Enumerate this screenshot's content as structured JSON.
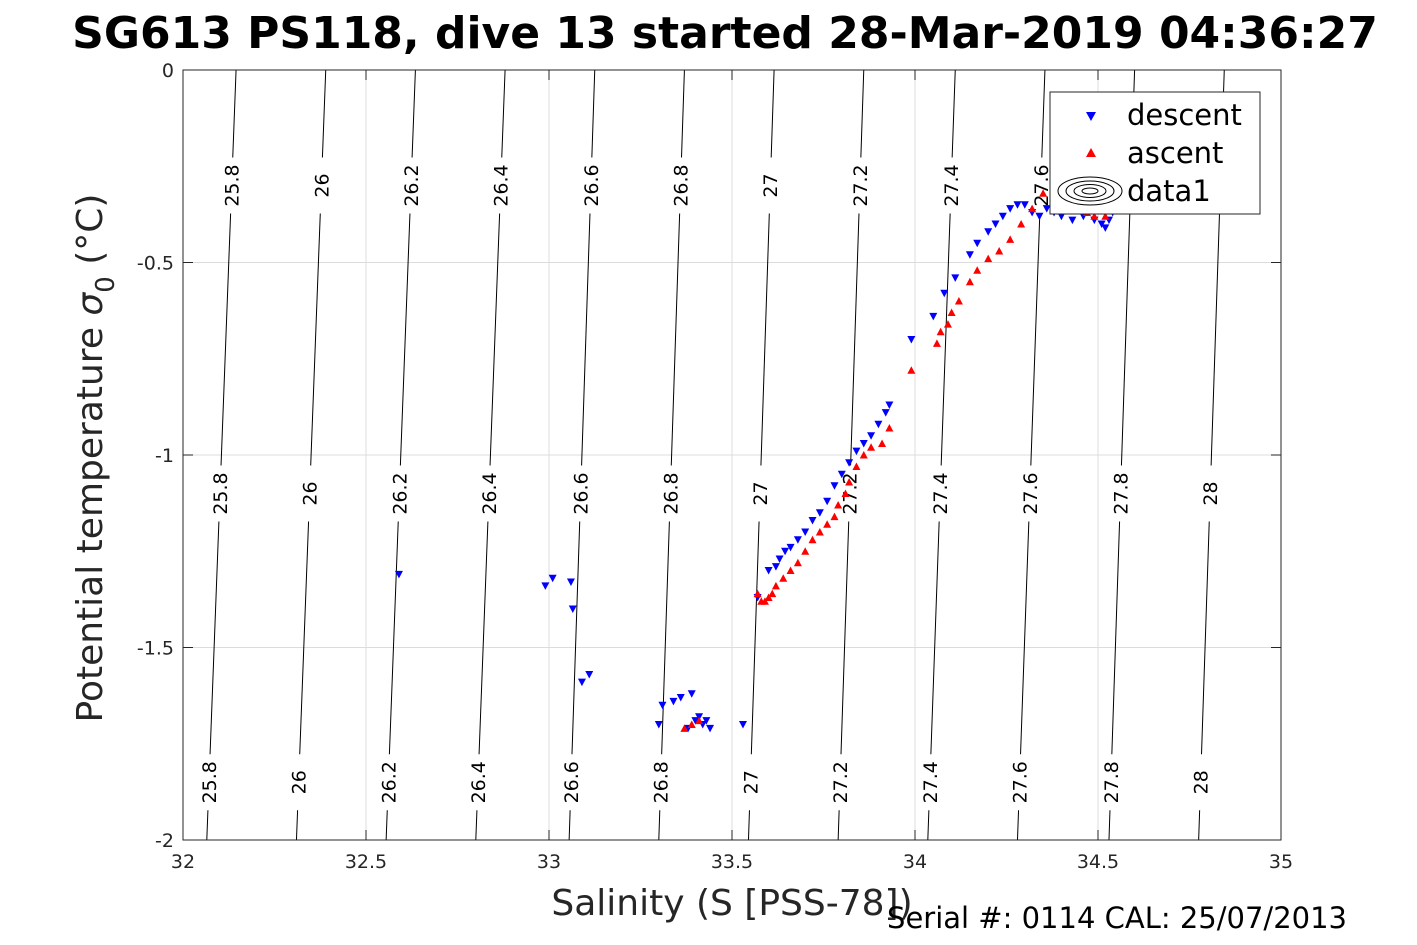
{
  "chart_data": {
    "type": "scatter",
    "title": "SG613 PS118, dive 13 started 28-Mar-2019 04:36:27",
    "xlabel": "Salinity (S [PSS-78])",
    "ylabel_main": "Potential temperature ",
    "ylabel_sigma": "σ",
    "ylabel_sub": "0",
    "ylabel_unit": " (°C)",
    "xlim": [
      32,
      35
    ],
    "ylim": [
      -2,
      0
    ],
    "xticks": [
      32,
      32.5,
      33,
      33.5,
      34,
      34.5,
      35
    ],
    "xtick_labels": [
      "32",
      "32.5",
      "33",
      "33.5",
      "34",
      "34.5",
      "35"
    ],
    "yticks": [
      0,
      -0.5,
      -1,
      -1.5,
      -2
    ],
    "ytick_labels": [
      "0",
      "-0.5",
      "-1",
      "-1.5",
      "-2"
    ],
    "grid": true,
    "legend_position": "top-right",
    "legend": [
      {
        "label": "descent",
        "marker": "triangle-down",
        "color": "#0000ff"
      },
      {
        "label": "ascent",
        "marker": "triangle-up",
        "color": "#ff0000"
      },
      {
        "label": "data1",
        "marker": "contour",
        "color": "#000000"
      }
    ],
    "contours": [
      {
        "label": "25.8",
        "x_top": 32.145,
        "x_bottom": 32.065
      },
      {
        "label": "26",
        "x_top": 32.39,
        "x_bottom": 32.31
      },
      {
        "label": "26.2",
        "x_top": 32.635,
        "x_bottom": 32.555
      },
      {
        "label": "26.4",
        "x_top": 32.88,
        "x_bottom": 32.8
      },
      {
        "label": "26.6",
        "x_top": 33.125,
        "x_bottom": 33.055
      },
      {
        "label": "26.8",
        "x_top": 33.37,
        "x_bottom": 33.3
      },
      {
        "label": "27",
        "x_top": 33.615,
        "x_bottom": 33.545
      },
      {
        "label": "27.2",
        "x_top": 33.86,
        "x_bottom": 33.79
      },
      {
        "label": "27.4",
        "x_top": 34.11,
        "x_bottom": 34.035
      },
      {
        "label": "27.6",
        "x_top": 34.355,
        "x_bottom": 34.28
      },
      {
        "label": "27.8",
        "x_top": 34.6,
        "x_bottom": 34.53
      },
      {
        "label": "28",
        "x_top": 34.845,
        "x_bottom": 34.775
      }
    ],
    "series": [
      {
        "name": "descent",
        "marker": "triangle-down",
        "color": "#0000ff",
        "x": [
          32.59,
          32.99,
          33.01,
          33.06,
          33.065,
          33.09,
          33.11,
          33.3,
          33.31,
          33.34,
          33.36,
          33.38,
          33.39,
          33.4,
          33.41,
          33.42,
          33.43,
          33.44,
          33.53,
          33.57,
          33.6,
          33.62,
          33.63,
          33.645,
          33.66,
          33.68,
          33.7,
          33.72,
          33.74,
          33.76,
          33.78,
          33.8,
          33.82,
          33.84,
          33.86,
          33.88,
          33.9,
          33.92,
          33.93,
          33.99,
          34.05,
          34.08,
          34.11,
          34.15,
          34.17,
          34.2,
          34.22,
          34.24,
          34.26,
          34.28,
          34.3,
          34.32,
          34.34,
          34.36,
          34.38,
          34.4,
          34.43,
          34.46,
          34.49,
          34.51,
          34.52,
          34.53,
          34.54,
          34.55
        ],
        "y": [
          -1.31,
          -1.34,
          -1.32,
          -1.33,
          -1.4,
          -1.59,
          -1.57,
          -1.7,
          -1.65,
          -1.64,
          -1.63,
          -1.71,
          -1.62,
          -1.69,
          -1.68,
          -1.7,
          -1.69,
          -1.71,
          -1.7,
          -1.37,
          -1.3,
          -1.29,
          -1.27,
          -1.25,
          -1.24,
          -1.22,
          -1.2,
          -1.17,
          -1.15,
          -1.12,
          -1.08,
          -1.05,
          -1.02,
          -0.99,
          -0.97,
          -0.95,
          -0.92,
          -0.89,
          -0.87,
          -0.7,
          -0.64,
          -0.58,
          -0.54,
          -0.48,
          -0.45,
          -0.42,
          -0.4,
          -0.38,
          -0.36,
          -0.35,
          -0.35,
          -0.37,
          -0.38,
          -0.36,
          -0.37,
          -0.38,
          -0.39,
          -0.38,
          -0.39,
          -0.4,
          -0.41,
          -0.39,
          -0.37,
          -0.36
        ]
      },
      {
        "name": "ascent",
        "marker": "triangle-up",
        "color": "#ff0000",
        "x": [
          33.37,
          33.39,
          33.41,
          33.57,
          33.58,
          33.59,
          33.6,
          33.61,
          33.62,
          33.64,
          33.66,
          33.68,
          33.7,
          33.72,
          33.74,
          33.76,
          33.78,
          33.79,
          33.81,
          33.82,
          33.84,
          33.86,
          33.88,
          33.91,
          33.93,
          33.99,
          34.06,
          34.07,
          34.09,
          34.1,
          34.12,
          34.15,
          34.17,
          34.2,
          34.23,
          34.26,
          34.29,
          34.32,
          34.35,
          34.38,
          34.41,
          34.44,
          34.47,
          34.49,
          34.52,
          34.54
        ],
        "y": [
          -1.71,
          -1.7,
          -1.69,
          -1.36,
          -1.38,
          -1.38,
          -1.37,
          -1.36,
          -1.34,
          -1.32,
          -1.3,
          -1.28,
          -1.25,
          -1.22,
          -1.2,
          -1.18,
          -1.16,
          -1.13,
          -1.1,
          -1.07,
          -1.03,
          -1.0,
          -0.98,
          -0.97,
          -0.93,
          -0.78,
          -0.71,
          -0.68,
          -0.66,
          -0.63,
          -0.6,
          -0.55,
          -0.52,
          -0.49,
          -0.47,
          -0.44,
          -0.4,
          -0.36,
          -0.32,
          -0.31,
          -0.34,
          -0.36,
          -0.37,
          -0.38,
          -0.38,
          -0.36
        ]
      }
    ]
  },
  "footer": {
    "serial_text": "Serial #: 0114  CAL: 25/07/2013"
  }
}
